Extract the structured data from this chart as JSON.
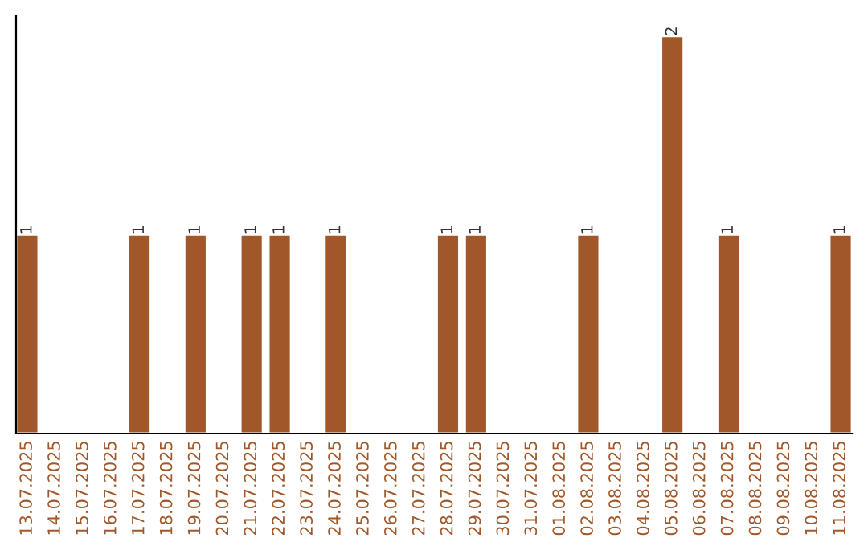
{
  "chart_data": {
    "type": "bar",
    "categories": [
      "13.07.2025",
      "14.07.2025",
      "15.07.2025",
      "16.07.2025",
      "17.07.2025",
      "18.07.2025",
      "19.07.2025",
      "20.07.2025",
      "21.07.2025",
      "22.07.2025",
      "23.07.2025",
      "24.07.2025",
      "25.07.2025",
      "26.07.2025",
      "27.07.2025",
      "28.07.2025",
      "29.07.2025",
      "30.07.2025",
      "31.07.2025",
      "01.08.2025",
      "02.08.2025",
      "03.08.2025",
      "04.08.2025",
      "05.08.2025",
      "06.08.2025",
      "07.08.2025",
      "08.08.2025",
      "09.08.2025",
      "10.08.2025",
      "11.08.2025"
    ],
    "values": [
      1,
      0,
      0,
      0,
      1,
      0,
      1,
      0,
      1,
      1,
      0,
      1,
      0,
      0,
      0,
      1,
      1,
      0,
      0,
      0,
      1,
      0,
      0,
      2,
      0,
      1,
      0,
      0,
      0,
      1
    ],
    "color": "#a0582a",
    "value_labels": [
      "1",
      null,
      null,
      null,
      "1",
      null,
      "1",
      null,
      "1",
      "1",
      null,
      "1",
      null,
      null,
      null,
      "1",
      "1",
      null,
      null,
      null,
      "1",
      null,
      null,
      "2",
      null,
      "1",
      null,
      null,
      null,
      "1"
    ],
    "grid": false,
    "tick_labels": "x"
  }
}
